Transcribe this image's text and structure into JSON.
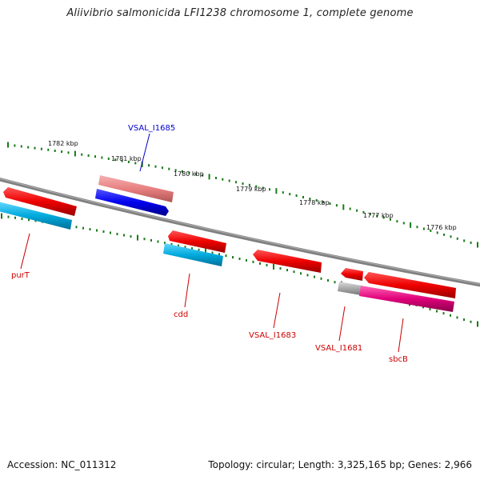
{
  "title": "Aliivibrio salmonicida LFI1238 chromosome 1, complete genome",
  "accession_text": "Accession: NC_011312",
  "stats_text": "Topology: circular; Length: 3,325,165 bp; Genes: 2,966",
  "colors": {
    "backbone": "#808080",
    "tick": "#1a7a1a",
    "red_label": "#cc0000",
    "blue_label": "#0000cc",
    "gene_red": "#ee0000",
    "gene_pink_light": "#e88080",
    "gene_blue": "#0000ee",
    "gene_cyan": "#00aadd",
    "gene_magenta": "#e0007a",
    "gene_gray": "#aaaaaa"
  },
  "kbp_labels": [
    "1782 kbp",
    "1781 kbp",
    "1780 kbp",
    "1779 kbp",
    "1778 kbp",
    "1777 kbp",
    "1776 kbp"
  ],
  "genes": [
    {
      "id": "g1",
      "label": "purT",
      "label_color": "red",
      "color": "gene_red",
      "strand": "+"
    },
    {
      "id": "g2",
      "label": "",
      "color": "gene_cyan",
      "strand": "+"
    },
    {
      "id": "g3",
      "label": "VSAL_I1685",
      "label_color": "blue",
      "color": "gene_pink_light",
      "strand": "+"
    },
    {
      "id": "g4",
      "label": "",
      "color": "gene_blue",
      "strand": "+"
    },
    {
      "id": "g5",
      "label": "cdd",
      "label_color": "red",
      "color": "gene_red",
      "strand": "+"
    },
    {
      "id": "g6",
      "label": "",
      "color": "gene_cyan",
      "strand": "+"
    },
    {
      "id": "g7",
      "label": "VSAL_I1683",
      "label_color": "red",
      "color": "gene_red",
      "strand": "-"
    },
    {
      "id": "g8",
      "label": "VSAL_I1681",
      "label_color": "red",
      "color": "gene_red",
      "strand": "-"
    },
    {
      "id": "g9",
      "label": "",
      "color": "gene_gray",
      "strand": "-"
    },
    {
      "id": "g10",
      "label": "sbcB",
      "label_color": "red",
      "color": "gene_red",
      "strand": "-"
    },
    {
      "id": "g11",
      "label": "",
      "color": "gene_magenta",
      "strand": "-"
    }
  ]
}
